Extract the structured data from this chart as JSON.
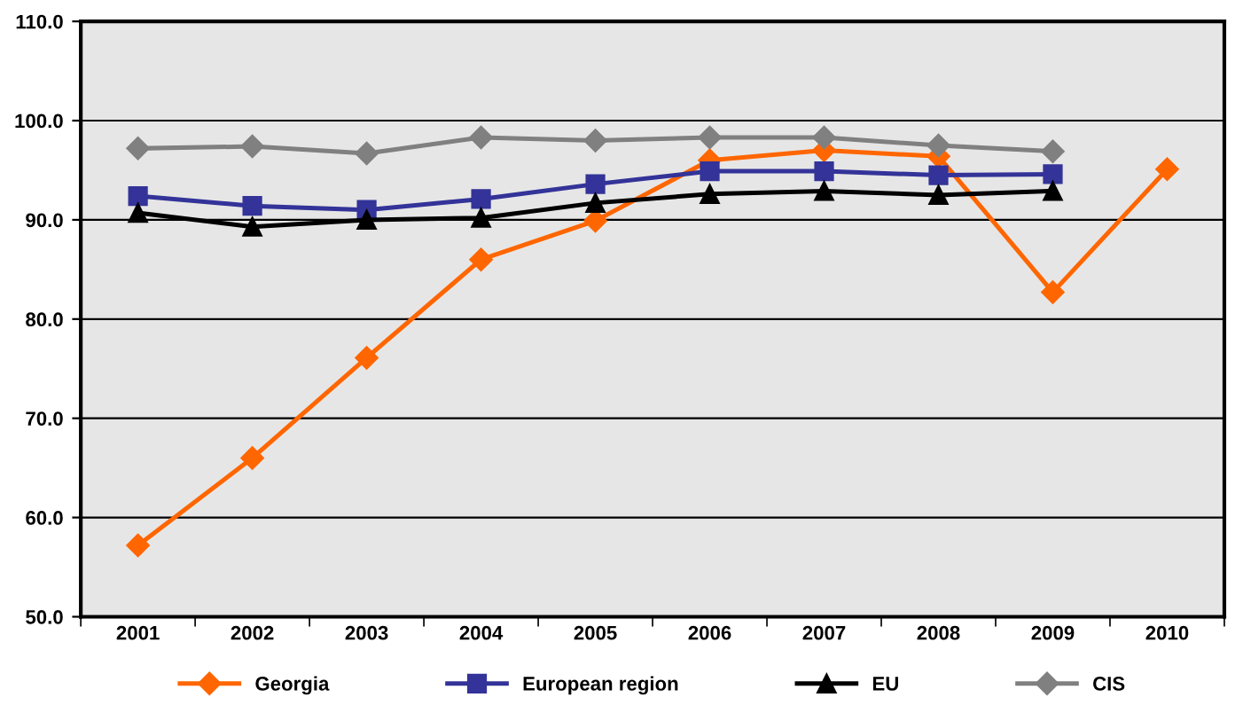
{
  "chart_data": {
    "type": "line",
    "categories": [
      "2001",
      "2002",
      "2003",
      "2004",
      "2005",
      "2006",
      "2007",
      "2008",
      "2009",
      "2010"
    ],
    "series": [
      {
        "name": "Georgia",
        "color": "#ff6600",
        "marker": "diamond",
        "values": [
          57.2,
          66.0,
          76.1,
          86.0,
          89.9,
          96.0,
          97.0,
          96.4,
          82.7,
          95.1
        ]
      },
      {
        "name": "European region",
        "color": "#333399",
        "marker": "square",
        "values": [
          92.4,
          91.4,
          91.0,
          92.1,
          93.6,
          94.9,
          94.9,
          94.5,
          94.6,
          null
        ]
      },
      {
        "name": "EU",
        "color": "#000000",
        "marker": "triangle",
        "values": [
          90.7,
          89.3,
          90.0,
          90.2,
          91.7,
          92.6,
          92.9,
          92.5,
          92.9,
          null
        ]
      },
      {
        "name": "CIS",
        "color": "#808080",
        "marker": "diamond",
        "values": [
          97.2,
          97.4,
          96.7,
          98.3,
          98.0,
          98.3,
          98.3,
          97.5,
          96.9,
          null
        ]
      }
    ],
    "ylim": [
      50,
      110
    ],
    "yticks": [
      {
        "value": 50,
        "label": "50.0"
      },
      {
        "value": 60,
        "label": "60.0"
      },
      {
        "value": 70,
        "label": "70.0"
      },
      {
        "value": 80,
        "label": "80.0"
      },
      {
        "value": 90,
        "label": "90.0"
      },
      {
        "value": 100,
        "label": "100.0"
      },
      {
        "value": 110,
        "label": "110.0"
      }
    ],
    "grid": "y",
    "legend": "bottom"
  }
}
